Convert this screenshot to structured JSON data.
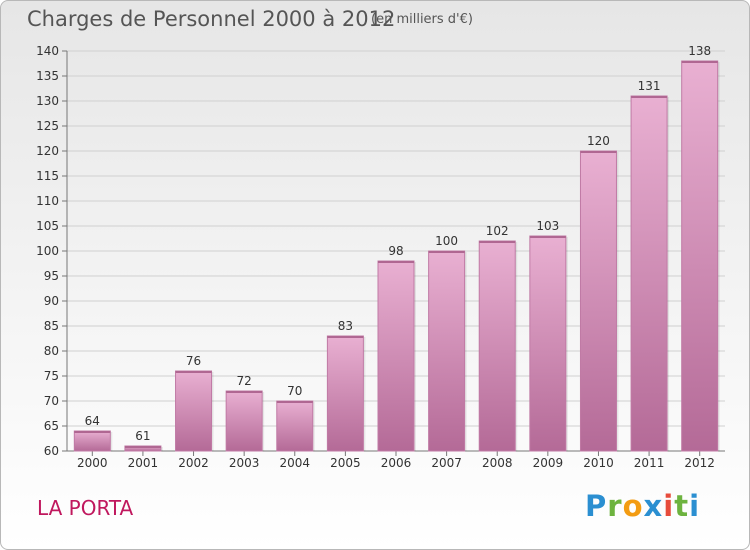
{
  "title": "Charges de Personnel 2000 à 2012",
  "subtitle": "(en milliers d'€)",
  "commune": "LA PORTA",
  "logo": {
    "text": "Proxiti",
    "letters": [
      "P",
      "r",
      "o",
      "x",
      "i",
      "t",
      "i"
    ],
    "colors": [
      "#2b8fd1",
      "#6db33f",
      "#f39c12",
      "#2b8fd1",
      "#e74c3c",
      "#6db33f",
      "#2b8fd1"
    ]
  },
  "colors": {
    "bar": "#d88fba",
    "bar_light": "#e9b0d2",
    "bar_dark": "#b46a97",
    "commune": "#c0185e"
  },
  "chart_data": {
    "type": "bar",
    "categories": [
      "2000",
      "2001",
      "2002",
      "2003",
      "2004",
      "2005",
      "2006",
      "2007",
      "2008",
      "2009",
      "2010",
      "2011",
      "2012"
    ],
    "values": [
      64,
      61,
      76,
      72,
      70,
      83,
      98,
      100,
      102,
      103,
      120,
      131,
      138
    ],
    "ylim": [
      60,
      140
    ],
    "yticks": [
      60,
      65,
      70,
      75,
      80,
      85,
      90,
      95,
      100,
      105,
      110,
      115,
      120,
      125,
      130,
      135,
      140
    ],
    "grid": true,
    "xlabel": "",
    "ylabel": ""
  }
}
